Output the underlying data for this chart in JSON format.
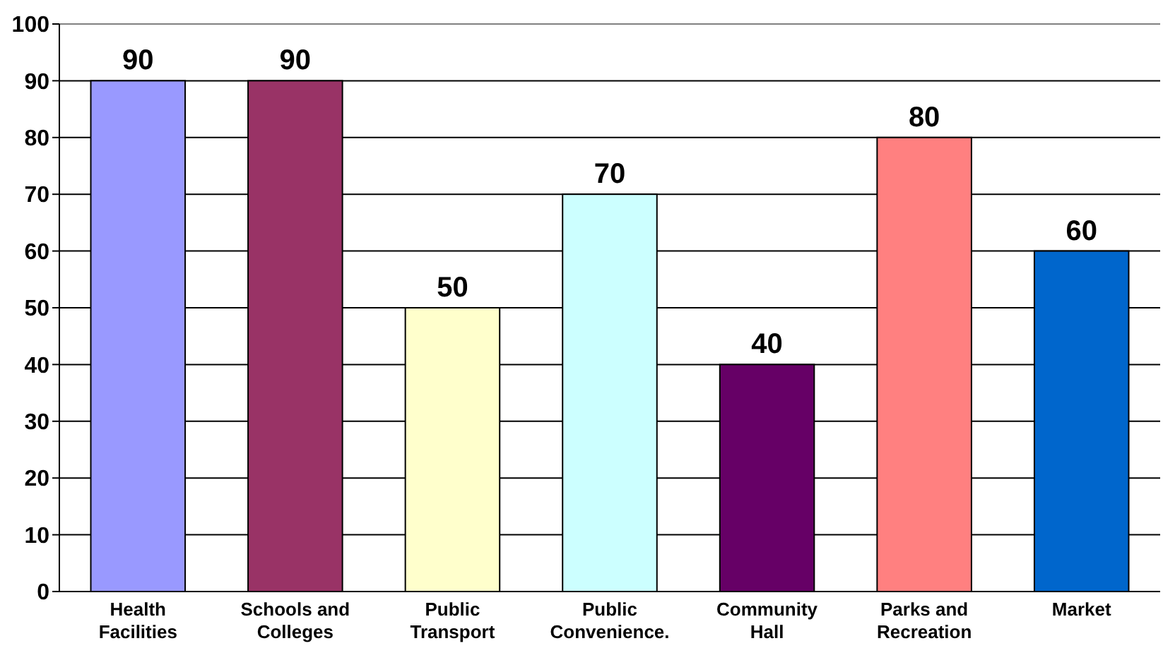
{
  "chart_data": {
    "type": "bar",
    "categories": [
      "Health Facilities",
      "Schools and Colleges",
      "Public Transport",
      "Public Convenience.",
      "Community Hall",
      "Parks and Recreation",
      "Market"
    ],
    "values": [
      90,
      90,
      50,
      70,
      40,
      80,
      60
    ],
    "colors": [
      "#9999ff",
      "#993366",
      "#ffffcc",
      "#ccffff",
      "#660066",
      "#ff8080",
      "#0066cc"
    ],
    "ylim": [
      0,
      100
    ],
    "yticks": [
      0,
      10,
      20,
      30,
      40,
      50,
      60,
      70,
      80,
      90,
      100
    ],
    "grid": "y",
    "data_labels": true
  }
}
